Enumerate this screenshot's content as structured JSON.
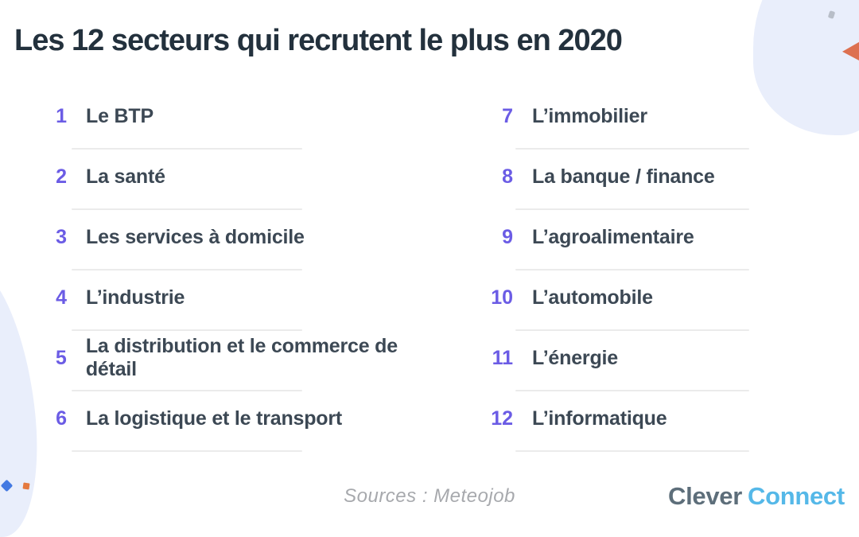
{
  "title": "Les 12 secteurs qui recrutent le plus en 2020",
  "sectors": {
    "left": [
      {
        "num": "1",
        "label": "Le BTP"
      },
      {
        "num": "2",
        "label": "La santé"
      },
      {
        "num": "3",
        "label": "Les services à domicile"
      },
      {
        "num": "4",
        "label": "L’industrie"
      },
      {
        "num": "5",
        "label": "La distribution et le commerce de détail"
      },
      {
        "num": "6",
        "label": "La logistique et le transport"
      }
    ],
    "right": [
      {
        "num": "7",
        "label": "L’immobilier"
      },
      {
        "num": "8",
        "label": "La banque / finance"
      },
      {
        "num": "9",
        "label": "L’agroalimentaire"
      },
      {
        "num": "10",
        "label": "L’automobile"
      },
      {
        "num": "11",
        "label": "L’énergie"
      },
      {
        "num": "12",
        "label": "L’informatique"
      }
    ]
  },
  "footer": {
    "sources": "Sources : Meteojob",
    "brand_part1": "Clever",
    "brand_part2": "Connect"
  },
  "colors": {
    "title_text": "#23313d",
    "item_text": "#3c4854",
    "rank_accent": "#6b5ce5",
    "divider": "#ebebeb",
    "blob_blue": "#e9eefb",
    "accent_orange": "#dd7050",
    "accent_orange_square": "#e4793f",
    "accent_blue_diamond": "#4379e2",
    "dot_gray": "#b8bec8",
    "sources_gray": "#a7a9ad",
    "brand_slate": "#5d6e7a",
    "brand_blue": "#55b8e8"
  }
}
